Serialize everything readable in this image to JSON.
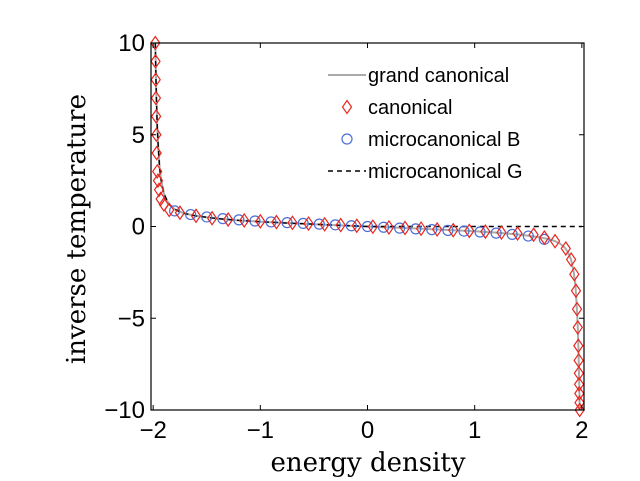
{
  "chart_data": {
    "type": "line",
    "title": "",
    "xlabel": "energy density",
    "ylabel": "inverse temperature",
    "xlim": [
      -2.02,
      2.02
    ],
    "ylim": [
      -10,
      10
    ],
    "xticks": [
      -2,
      -1,
      0,
      1,
      2
    ],
    "xtick_labels": [
      "−2",
      "−1",
      "0",
      "1",
      "2"
    ],
    "yticks": [
      10,
      5,
      0,
      -5,
      -10
    ],
    "ytick_labels": [
      "10",
      "5",
      "0",
      "−5",
      "−10"
    ],
    "grid": false,
    "legend_position": "top-right",
    "series": [
      {
        "name": "grand canonical",
        "style": "solid-line",
        "color": "#aaaaaa",
        "x": [
          -1.98,
          -1.975,
          -1.97,
          -1.962,
          -1.952,
          -1.94,
          -1.925,
          -1.9,
          -1.87,
          -1.84,
          -1.8,
          -1.75,
          -1.7,
          -1.6,
          -1.5,
          -1.4,
          -1.3,
          -1.2,
          -1.0,
          -0.8,
          -0.6,
          -0.4,
          -0.2,
          0.0,
          0.2,
          0.4,
          0.6,
          0.8,
          1.0,
          1.2,
          1.3,
          1.4,
          1.5,
          1.6,
          1.7,
          1.75,
          1.8,
          1.84,
          1.87,
          1.9,
          1.925,
          1.94,
          1.952,
          1.962,
          1.97,
          1.975,
          1.98
        ],
        "y": [
          10,
          8.5,
          7,
          5.5,
          4.3,
          3.2,
          2.5,
          1.8,
          1.4,
          1.15,
          0.95,
          0.8,
          0.7,
          0.58,
          0.5,
          0.43,
          0.38,
          0.33,
          0.26,
          0.2,
          0.15,
          0.1,
          0.05,
          0.0,
          -0.05,
          -0.1,
          -0.15,
          -0.2,
          -0.26,
          -0.33,
          -0.38,
          -0.43,
          -0.5,
          -0.58,
          -0.7,
          -0.8,
          -0.95,
          -1.15,
          -1.4,
          -1.8,
          -2.5,
          -3.2,
          -4.3,
          -5.5,
          -7,
          -8.5,
          -10
        ]
      },
      {
        "name": "canonical",
        "style": "diamond-markers",
        "color": "#e8261e",
        "x": [
          -1.98,
          -1.978,
          -1.976,
          -1.974,
          -1.972,
          -1.97,
          -1.967,
          -1.962,
          -1.955,
          -1.945,
          -1.93,
          -1.9,
          -1.85,
          -1.75,
          -1.6,
          -1.45,
          -1.3,
          -1.15,
          -1.0,
          -0.85,
          -0.7,
          -0.55,
          -0.4,
          -0.25,
          -0.1,
          0.05,
          0.2,
          0.35,
          0.5,
          0.65,
          0.8,
          0.95,
          1.1,
          1.25,
          1.4,
          1.55,
          1.65,
          1.75,
          1.85,
          1.9,
          1.93,
          1.945,
          1.955,
          1.962,
          1.967,
          1.97,
          1.972,
          1.974,
          1.976,
          1.978,
          1.98
        ],
        "y": [
          10,
          9,
          8,
          7,
          6,
          5,
          4,
          3,
          2.5,
          2,
          1.5,
          1.2,
          0.9,
          0.75,
          0.58,
          0.45,
          0.38,
          0.33,
          0.28,
          0.24,
          0.2,
          0.16,
          0.12,
          0.08,
          0.04,
          -0.01,
          -0.05,
          -0.08,
          -0.12,
          -0.16,
          -0.2,
          -0.24,
          -0.28,
          -0.33,
          -0.38,
          -0.45,
          -0.6,
          -0.8,
          -1.2,
          -1.8,
          -2.6,
          -3.5,
          -4.5,
          -5.5,
          -6.5,
          -7.3,
          -8,
          -8.6,
          -9.1,
          -9.6,
          -10
        ]
      },
      {
        "name": "microcanonical B",
        "style": "circle-markers",
        "color": "#4a6fd8",
        "x": [
          -1.8,
          -1.65,
          -1.5,
          -1.35,
          -1.2,
          -1.05,
          -0.9,
          -0.75,
          -0.6,
          -0.45,
          -0.3,
          -0.15,
          0.0,
          0.15,
          0.3,
          0.45,
          0.6,
          0.75,
          0.9,
          1.05,
          1.2,
          1.35,
          1.5,
          1.65
        ],
        "y": [
          0.85,
          0.65,
          0.52,
          0.43,
          0.36,
          0.3,
          0.25,
          0.21,
          0.17,
          0.13,
          0.09,
          0.04,
          0.0,
          -0.04,
          -0.09,
          -0.13,
          -0.17,
          -0.21,
          -0.25,
          -0.3,
          -0.36,
          -0.43,
          -0.52,
          -0.7
        ]
      },
      {
        "name": "microcanonical G",
        "style": "dashed-line",
        "color": "#000000",
        "x": [
          -1.98,
          -1.975,
          -1.97,
          -1.962,
          -1.952,
          -1.94,
          -1.925,
          -1.9,
          -1.87,
          -1.84,
          -1.8,
          -1.75,
          -1.7,
          -1.6,
          -1.5,
          -1.4,
          -1.3,
          -1.2,
          -1.0,
          -0.8,
          -0.6,
          -0.4,
          -0.2,
          0.0,
          0.5,
          1.0,
          1.5,
          2.0
        ],
        "y": [
          10,
          8.5,
          7,
          5.5,
          4.3,
          3.2,
          2.5,
          1.8,
          1.4,
          1.15,
          0.95,
          0.8,
          0.7,
          0.58,
          0.5,
          0.43,
          0.38,
          0.33,
          0.26,
          0.2,
          0.15,
          0.1,
          0.05,
          0.0,
          0.0,
          0.0,
          0.0,
          0.0
        ]
      }
    ]
  }
}
